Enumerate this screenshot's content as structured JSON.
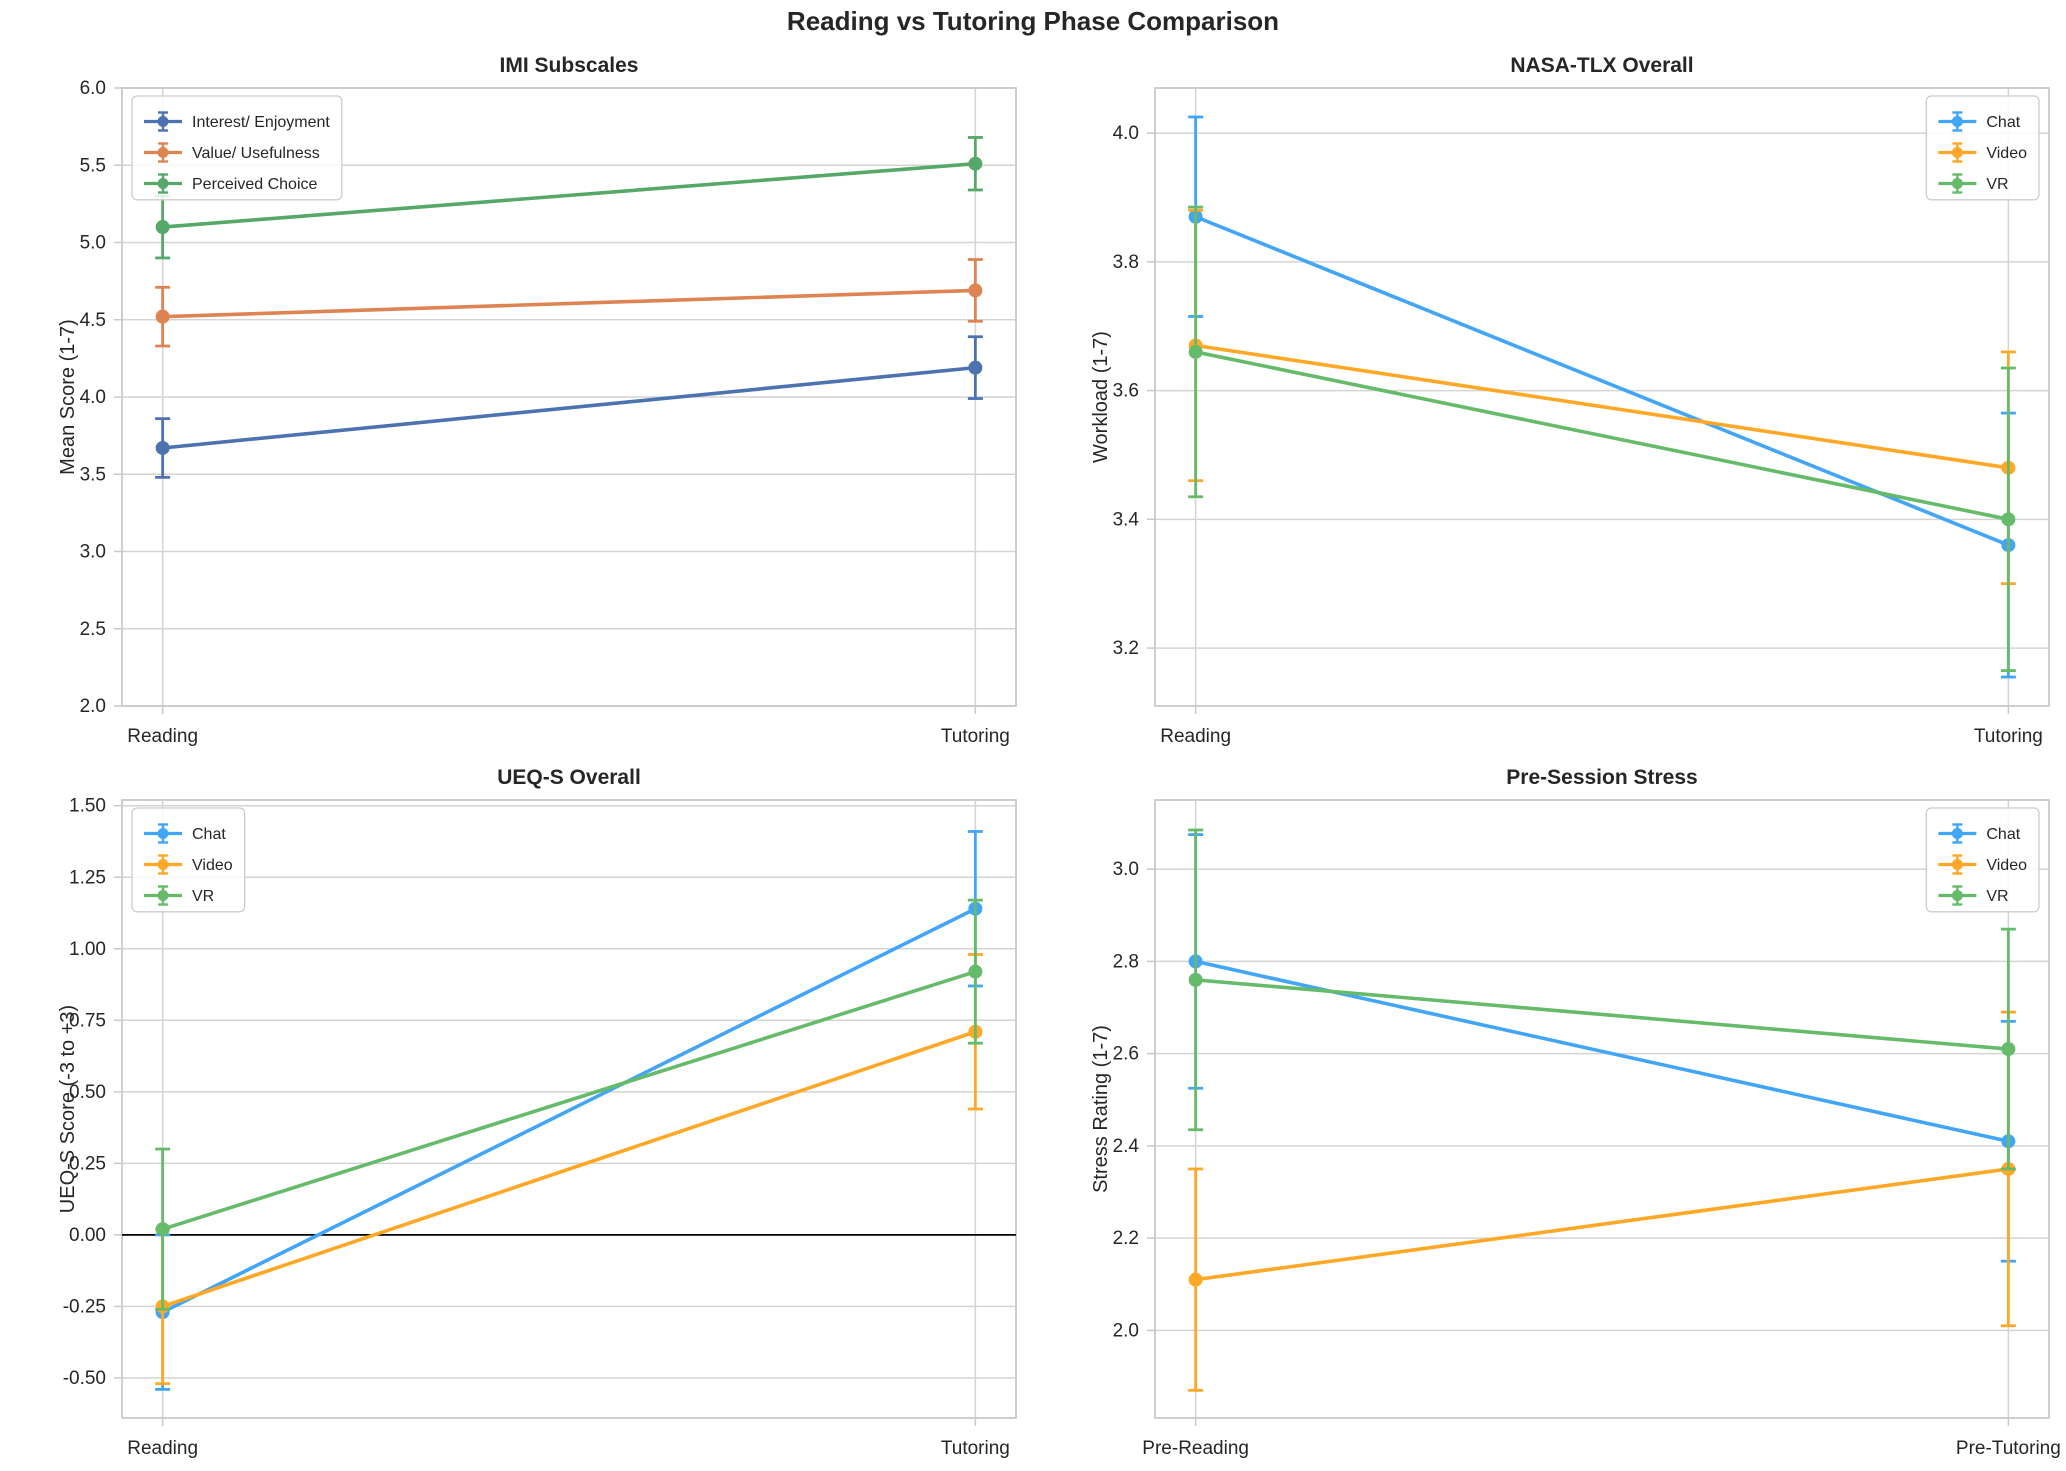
{
  "figure_title": "Reading vs Tutoring Phase Comparison",
  "style": {
    "text_color": "#262626",
    "grid_color": "#d4d4d4",
    "spine_color": "#c9c9c9",
    "background": "#ffffff",
    "zero_line_color": "#000000"
  },
  "chart_data": [
    {
      "id": "imi-subscales",
      "type": "line",
      "title": "IMI Subscales",
      "xlabel": "",
      "ylabel": "Mean Score (1-7)",
      "categories": [
        "Reading",
        "Tutoring"
      ],
      "ylim": [
        2.0,
        6.0
      ],
      "yticks": [
        2.0,
        2.5,
        3.0,
        3.5,
        4.0,
        4.5,
        5.0,
        5.5,
        6.0
      ],
      "ytick_labels": [
        "2.0",
        "2.5",
        "3.0",
        "3.5",
        "4.0",
        "4.5",
        "5.0",
        "5.5",
        "6.0"
      ],
      "grid": true,
      "zero_line": false,
      "legend_position": "top-left",
      "series": [
        {
          "name": "Interest/ Enjoyment",
          "color": "#4C72B0",
          "values": [
            3.67,
            4.19
          ],
          "errors": [
            0.19,
            0.2
          ]
        },
        {
          "name": "Value/ Usefulness",
          "color": "#DD8452",
          "values": [
            4.52,
            4.69
          ],
          "errors": [
            0.19,
            0.2
          ]
        },
        {
          "name": "Perceived Choice",
          "color": "#55A868",
          "values": [
            5.1,
            5.51
          ],
          "errors": [
            0.2,
            0.17
          ]
        }
      ]
    },
    {
      "id": "nasa-tlx-overall",
      "type": "line",
      "title": "NASA-TLX Overall",
      "xlabel": "",
      "ylabel": "Workload (1-7)",
      "categories": [
        "Reading",
        "Tutoring"
      ],
      "ylim": [
        3.11,
        4.07
      ],
      "yticks": [
        3.2,
        3.4,
        3.6,
        3.8,
        4.0
      ],
      "ytick_labels": [
        "3.2",
        "3.4",
        "3.6",
        "3.8",
        "4.0"
      ],
      "grid": true,
      "zero_line": false,
      "legend_position": "top-right",
      "series": [
        {
          "name": "Chat",
          "color": "#42A5F5",
          "values": [
            3.87,
            3.36
          ],
          "errors": [
            0.155,
            0.205
          ]
        },
        {
          "name": "Video",
          "color": "#FFA726",
          "values": [
            3.67,
            3.48
          ],
          "errors": [
            0.21,
            0.18
          ]
        },
        {
          "name": "VR",
          "color": "#66BB6A",
          "values": [
            3.66,
            3.4
          ],
          "errors": [
            0.225,
            0.235
          ]
        }
      ]
    },
    {
      "id": "ueq-s-overall",
      "type": "line",
      "title": "UEQ-S Overall",
      "xlabel": "",
      "ylabel": "UEQ-S Score (-3 to +3)",
      "categories": [
        "Reading",
        "Tutoring"
      ],
      "ylim": [
        -0.64,
        1.52
      ],
      "yticks": [
        -0.5,
        -0.25,
        0.0,
        0.25,
        0.5,
        0.75,
        1.0,
        1.25,
        1.5
      ],
      "ytick_labels": [
        "-0.50",
        "-0.25",
        "0.00",
        "0.25",
        "0.50",
        "0.75",
        "1.00",
        "1.25",
        "1.50"
      ],
      "grid": true,
      "zero_line": true,
      "legend_position": "top-left",
      "series": [
        {
          "name": "Chat",
          "color": "#42A5F5",
          "values": [
            -0.27,
            1.14
          ],
          "errors": [
            0.27,
            0.27
          ]
        },
        {
          "name": "Video",
          "color": "#FFA726",
          "values": [
            -0.25,
            0.71
          ],
          "errors": [
            0.27,
            0.27
          ]
        },
        {
          "name": "VR",
          "color": "#66BB6A",
          "values": [
            0.02,
            0.92
          ],
          "errors": [
            0.28,
            0.25
          ]
        }
      ]
    },
    {
      "id": "pre-session-stress",
      "type": "line",
      "title": "Pre-Session Stress",
      "xlabel": "",
      "ylabel": "Stress Rating (1-7)",
      "categories": [
        "Pre-Reading",
        "Pre-Tutoring"
      ],
      "ylim": [
        1.81,
        3.15
      ],
      "yticks": [
        2.0,
        2.2,
        2.4,
        2.6,
        2.8,
        3.0
      ],
      "ytick_labels": [
        "2.0",
        "2.2",
        "2.4",
        "2.6",
        "2.8",
        "3.0"
      ],
      "grid": true,
      "zero_line": false,
      "legend_position": "top-right",
      "series": [
        {
          "name": "Chat",
          "color": "#42A5F5",
          "values": [
            2.8,
            2.41
          ],
          "errors": [
            0.275,
            0.26
          ]
        },
        {
          "name": "Video",
          "color": "#FFA726",
          "values": [
            2.11,
            2.35
          ],
          "errors": [
            0.24,
            0.34
          ]
        },
        {
          "name": "VR",
          "color": "#66BB6A",
          "values": [
            2.76,
            2.61
          ],
          "errors": [
            0.325,
            0.26
          ]
        }
      ]
    }
  ]
}
